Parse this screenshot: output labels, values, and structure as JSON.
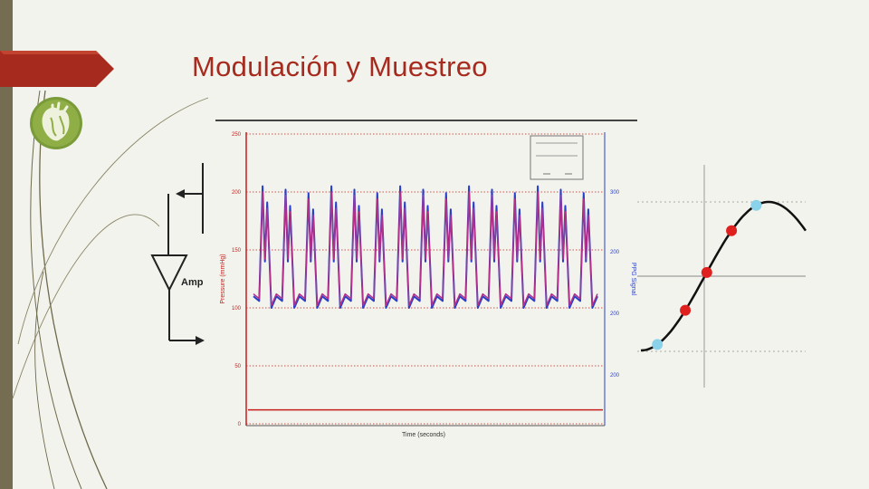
{
  "slide": {
    "title": "Modulación y Muestreo",
    "colors": {
      "accent": "#a62a1d",
      "bar": "#756d52",
      "background": "#f2f3ec"
    }
  },
  "logo": {
    "icon": "heart-anatomy-icon"
  },
  "amplifier": {
    "label": "Amp"
  },
  "chart_data": {
    "type": "line",
    "xlabel": "Time (seconds)",
    "ylabel": "Pressure (mmHg)",
    "ylabel_right": "PPG Signal",
    "yticks": [
      "250",
      "200",
      "150",
      "100",
      "50",
      "0"
    ],
    "yticks_right": [
      "300",
      "200",
      "200",
      "200"
    ],
    "ylim": [
      0,
      250
    ],
    "grid": true,
    "series": [
      {
        "color": "#2a3fc8",
        "peaks": 15,
        "min": 100,
        "max": 205
      },
      {
        "color": "#b0308a",
        "peaks": 15,
        "min": 102,
        "max": 200
      },
      {
        "color": "#c81e1e",
        "baseline": 12
      }
    ]
  },
  "sampling": {
    "type": "sine-sampling",
    "sample_colors": {
      "extreme": "#8ad2ea",
      "intermediate": "#e01f1f"
    }
  }
}
